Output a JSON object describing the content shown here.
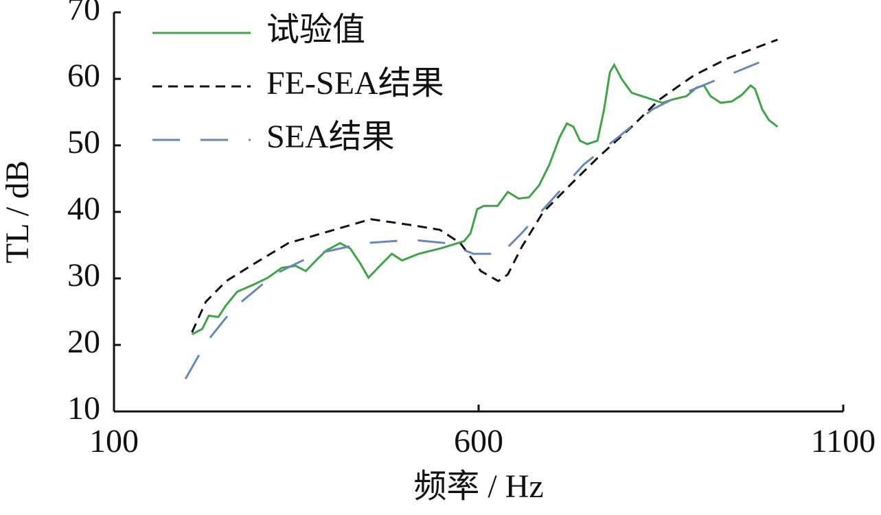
{
  "chart_data": {
    "type": "line",
    "xlabel": "频率 / Hz",
    "ylabel": "TL / dB",
    "xlim": [
      100,
      1100
    ],
    "xticks": [
      100,
      600,
      1100
    ],
    "ylim": [
      10,
      70
    ],
    "yticks": [
      10,
      20,
      30,
      40,
      50,
      60,
      70
    ],
    "series": [
      {
        "name": "试验值",
        "color": "#3fa447",
        "dash": "solid",
        "x": [
          207,
          221,
          230,
          243,
          254,
          269,
          292,
          311,
          330,
          349,
          363,
          377,
          391,
          410,
          424,
          438,
          449,
          462,
          481,
          495,
          518,
          547,
          580,
          589,
          598,
          607,
          626,
          640,
          655,
          669,
          683,
          697,
          711,
          721,
          730,
          739,
          749,
          763,
          772,
          780,
          786,
          796,
          810,
          824,
          838,
          852,
          866,
          885,
          899,
          909,
          918,
          932,
          947,
          961,
          973,
          979,
          989,
          998,
          1010
        ],
        "values": [
          21.6,
          22.4,
          24.4,
          24.2,
          26.0,
          28.0,
          29.1,
          30.1,
          31.6,
          31.9,
          31.1,
          32.7,
          34.2,
          35.3,
          34.5,
          32.2,
          30.1,
          31.6,
          33.7,
          32.7,
          33.7,
          34.5,
          35.6,
          36.8,
          40.4,
          40.9,
          40.9,
          43.0,
          42.0,
          42.2,
          44.0,
          47.1,
          51.2,
          53.3,
          52.8,
          50.7,
          50.2,
          50.7,
          55.4,
          61.0,
          62.1,
          60.0,
          57.9,
          57.4,
          56.9,
          56.4,
          56.9,
          57.4,
          58.7,
          59.0,
          57.4,
          56.4,
          56.6,
          57.6,
          59.0,
          58.5,
          55.4,
          53.8,
          52.8
        ]
      },
      {
        "name": "FE-SEA结果",
        "color": "#111111",
        "dash": "short",
        "x": [
          207,
          226,
          254,
          292,
          339,
          386,
          452,
          509,
          547,
          575,
          603,
          627,
          640,
          659,
          688,
          725,
          763,
          810,
          848,
          895,
          942,
          1010
        ],
        "values": [
          21.9,
          26.5,
          29.6,
          32.2,
          35.3,
          36.8,
          38.9,
          38.0,
          37.3,
          35.3,
          31.1,
          29.6,
          30.6,
          34.7,
          39.9,
          44.0,
          48.1,
          52.8,
          56.9,
          60.5,
          63.1,
          65.9
        ]
      },
      {
        "name": "SEA结果",
        "color": "#6a86b6",
        "dash": "long",
        "x": [
          198,
          226,
          264,
          320,
          377,
          443,
          509,
          556,
          593,
          631,
          659,
          697,
          744,
          791,
          838,
          885,
          932,
          1010
        ],
        "values": [
          14.9,
          20.3,
          25.5,
          30.6,
          33.7,
          35.3,
          35.8,
          35.3,
          33.7,
          33.7,
          36.8,
          41.4,
          47.1,
          51.2,
          55.4,
          58.0,
          60.1,
          63.6
        ]
      }
    ]
  }
}
